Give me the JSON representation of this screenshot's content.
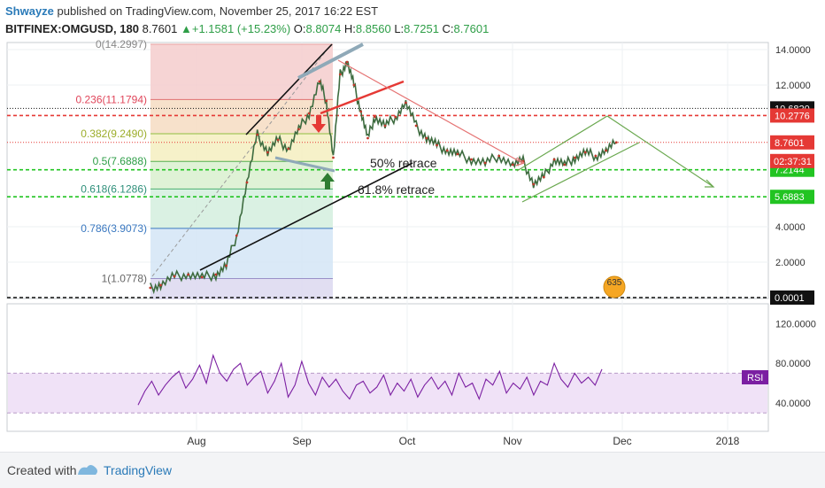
{
  "header": {
    "user": "Shwayze",
    "published": "published on TradingView.com, November 25, 2017 16:22 EST",
    "symbol": "BITFINEX:OMGUSD, 180",
    "last": "8.7601",
    "change": "+1.1581 (+15.23%)",
    "o_label": "O:",
    "o_value": "8.8074",
    "h_label": "H:",
    "h_value": "8.8560",
    "l_label": "L:",
    "l_value": "8.7251",
    "c_label": "C:",
    "c_value": "8.7601"
  },
  "footer": {
    "created": "Created with",
    "brand": "TradingView"
  },
  "colors": {
    "up": "#2e9e47",
    "down": "#e53935",
    "accent": "#2a7ab8",
    "rsi": "#7b1fa2"
  },
  "chart_data": {
    "type": "line",
    "x_labels": [
      "Aug",
      "Sep",
      "Oct",
      "Nov",
      "Dec",
      "2018"
    ],
    "y_ticks": [
      "14.0000",
      "12.0000",
      "4.0000",
      "2.0000"
    ],
    "ylim": [
      0,
      15
    ],
    "price_series": {
      "x": [
        "2017-07-13",
        "2017-07-16",
        "2017-07-20",
        "2017-07-24",
        "2017-07-28",
        "2017-08-01",
        "2017-08-04",
        "2017-08-07",
        "2017-08-10",
        "2017-08-13",
        "2017-08-16",
        "2017-08-19",
        "2017-08-22",
        "2017-08-25",
        "2017-08-28",
        "2017-08-31",
        "2017-09-02",
        "2017-09-04",
        "2017-09-06",
        "2017-09-08",
        "2017-09-10",
        "2017-09-12",
        "2017-09-14",
        "2017-09-16",
        "2017-09-19",
        "2017-09-22",
        "2017-09-25",
        "2017-09-28",
        "2017-10-01",
        "2017-10-04",
        "2017-10-07",
        "2017-10-10",
        "2017-10-14",
        "2017-10-18",
        "2017-10-22",
        "2017-10-26",
        "2017-10-29",
        "2017-11-01",
        "2017-11-04",
        "2017-11-07",
        "2017-11-10",
        "2017-11-13",
        "2017-11-16",
        "2017-11-19",
        "2017-11-22",
        "2017-11-25"
      ],
      "values": [
        0.55,
        0.7,
        1.2,
        1.3,
        1.15,
        1.3,
        1.8,
        3.5,
        6.5,
        9.2,
        8.2,
        8.9,
        8.4,
        9.5,
        10.4,
        12.2,
        11.1,
        7.9,
        12.6,
        13.3,
        12.0,
        10.5,
        9.0,
        10.2,
        9.7,
        10.2,
        11.0,
        9.7,
        9.0,
        8.6,
        8.3,
        8.1,
        7.8,
        7.6,
        8.0,
        7.5,
        7.7,
        6.4,
        6.8,
        7.8,
        7.5,
        7.9,
        8.2,
        8.0,
        8.3,
        8.76
      ]
    },
    "fibonacci_levels": [
      {
        "ratio": "0",
        "price": "14.2997",
        "label": "0(14.2997)"
      },
      {
        "ratio": "0.236",
        "price": "11.1794",
        "label": "0.236(11.1794)"
      },
      {
        "ratio": "0.382",
        "price": "9.2490",
        "label": "0.382(9.2490)"
      },
      {
        "ratio": "0.5",
        "price": "7.6888",
        "label": "0.5(7.6888)"
      },
      {
        "ratio": "0.618",
        "price": "6.1286",
        "label": "0.618(6.1286)"
      },
      {
        "ratio": "0.786",
        "price": "3.9073",
        "label": "0.786(3.9073)"
      },
      {
        "ratio": "1",
        "price": "1.0778",
        "label": "1(1.0778)"
      }
    ],
    "horizontal_lines": [
      {
        "value": 10.682,
        "label": "10.6820",
        "color": "#111111",
        "style": "dotted"
      },
      {
        "value": 10.2776,
        "label": "10.2776",
        "color": "#e53935",
        "style": "dashed"
      },
      {
        "value": 8.7601,
        "label": "8.7601",
        "color": "#e53935",
        "style": "dotted"
      },
      {
        "value": 7.2144,
        "label": "7.2144",
        "color": "#22c422",
        "style": "dashed"
      },
      {
        "value": 5.6883,
        "label": "5.6883",
        "color": "#22c422",
        "style": "dashed"
      },
      {
        "value": 0.0001,
        "label": "0.0001",
        "color": "#111111",
        "style": "dashed"
      }
    ],
    "countdown_label": "02:37:31",
    "annotations": [
      "50% retrace",
      "61.8% retrace"
    ],
    "event_badge": "635",
    "rsi": {
      "label": "RSI",
      "y_ticks": [
        "120.0000",
        "80.0000",
        "40.0000"
      ],
      "ylim": [
        20,
        140
      ],
      "band": [
        30,
        70
      ],
      "values": [
        38,
        52,
        62,
        48,
        58,
        66,
        72,
        55,
        64,
        78,
        60,
        88,
        70,
        62,
        74,
        80,
        58,
        66,
        72,
        50,
        62,
        80,
        46,
        58,
        82,
        60,
        48,
        66,
        56,
        64,
        52,
        44,
        58,
        62,
        50,
        56,
        68,
        48,
        60,
        52,
        64,
        46,
        58,
        66,
        54,
        62,
        48,
        70,
        56,
        60,
        44,
        64,
        58,
        72,
        50,
        60,
        54,
        66,
        48,
        62,
        58,
        80,
        64,
        56,
        70,
        60,
        66,
        58,
        74
      ]
    }
  }
}
